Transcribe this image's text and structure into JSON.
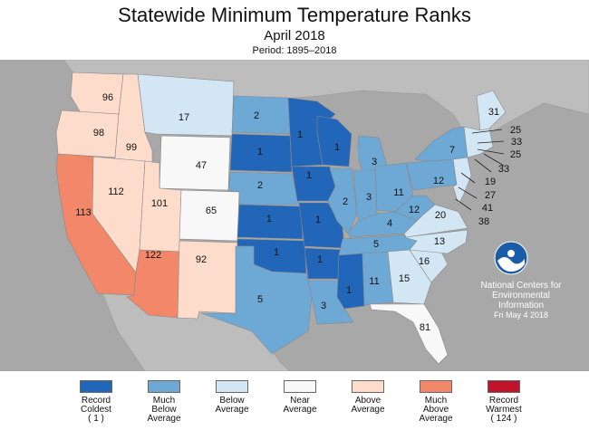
{
  "header": {
    "title": "Statewide Minimum Temperature Ranks",
    "subtitle": "April 2018",
    "period": "Period: 1895–2018"
  },
  "colors": {
    "record_coldest": "#2166b8",
    "much_below": "#6ea8d4",
    "below": "#d3e6f4",
    "near": "#f8f8f8",
    "above": "#fddccb",
    "much_above": "#f2876a",
    "record_warmest": "#c0142c",
    "background": "#a8a8a8",
    "land": "#bdbdbd"
  },
  "states": [
    {
      "name": "Washington",
      "rank": "96"
    },
    {
      "name": "Oregon",
      "rank": "98"
    },
    {
      "name": "Idaho",
      "rank": "99"
    },
    {
      "name": "Montana",
      "rank": "17"
    },
    {
      "name": "Wyoming",
      "rank": "47"
    },
    {
      "name": "California",
      "rank": "113"
    },
    {
      "name": "Nevada",
      "rank": "112"
    },
    {
      "name": "Utah",
      "rank": "101"
    },
    {
      "name": "Colorado",
      "rank": "65"
    },
    {
      "name": "Arizona",
      "rank": "122"
    },
    {
      "name": "New Mexico",
      "rank": "92"
    },
    {
      "name": "North Dakota",
      "rank": "2"
    },
    {
      "name": "South Dakota",
      "rank": "1"
    },
    {
      "name": "Nebraska",
      "rank": "2"
    },
    {
      "name": "Kansas",
      "rank": "1"
    },
    {
      "name": "Oklahoma",
      "rank": "1"
    },
    {
      "name": "Texas",
      "rank": "5"
    },
    {
      "name": "Minnesota",
      "rank": "1"
    },
    {
      "name": "Iowa",
      "rank": "1"
    },
    {
      "name": "Missouri",
      "rank": "1"
    },
    {
      "name": "Arkansas",
      "rank": "1"
    },
    {
      "name": "Louisiana",
      "rank": "3"
    },
    {
      "name": "Wisconsin",
      "rank": "1"
    },
    {
      "name": "Michigan",
      "rank": "3"
    },
    {
      "name": "Illinois",
      "rank": "2"
    },
    {
      "name": "Indiana",
      "rank": "3"
    },
    {
      "name": "Ohio",
      "rank": "11"
    },
    {
      "name": "Kentucky",
      "rank": "4"
    },
    {
      "name": "Tennessee",
      "rank": "5"
    },
    {
      "name": "Mississippi",
      "rank": "1"
    },
    {
      "name": "Alabama",
      "rank": "11"
    },
    {
      "name": "Georgia",
      "rank": "15"
    },
    {
      "name": "Florida",
      "rank": "81"
    },
    {
      "name": "South Carolina",
      "rank": "16"
    },
    {
      "name": "North Carolina",
      "rank": "13"
    },
    {
      "name": "Virginia",
      "rank": "20"
    },
    {
      "name": "West Virginia",
      "rank": "12"
    },
    {
      "name": "Pennsylvania",
      "rank": "12"
    },
    {
      "name": "New York",
      "rank": "7"
    },
    {
      "name": "Maine",
      "rank": "31"
    },
    {
      "name": "New Hampshire",
      "rank": "25"
    },
    {
      "name": "Vermont",
      "rank": "33"
    },
    {
      "name": "Massachusetts",
      "rank": "25"
    },
    {
      "name": "Rhode Island",
      "rank": "33"
    },
    {
      "name": "Connecticut",
      "rank": "19"
    },
    {
      "name": "New Jersey",
      "rank": "27"
    },
    {
      "name": "Delaware",
      "rank": "41"
    },
    {
      "name": "Maryland",
      "rank": "38"
    }
  ],
  "credit": {
    "line1": "National Centers for",
    "line2": "Environmental",
    "line3": "Information",
    "date": "Fri May  4 2018",
    "logo_text": "NOAA"
  },
  "legend": [
    {
      "line1": "Record",
      "line2": "Coldest",
      "line3": "( 1 )",
      "color": "#2166b8"
    },
    {
      "line1": "Much",
      "line2": "Below",
      "line3": "Average",
      "color": "#6ea8d4"
    },
    {
      "line1": "Below",
      "line2": "Average",
      "line3": "",
      "color": "#d3e6f4"
    },
    {
      "line1": "Near",
      "line2": "Average",
      "line3": "",
      "color": "#f8f8f8"
    },
    {
      "line1": "Above",
      "line2": "Average",
      "line3": "",
      "color": "#fddccb"
    },
    {
      "line1": "Much",
      "line2": "Above",
      "line3": "Average",
      "color": "#f2876a"
    },
    {
      "line1": "Record",
      "line2": "Warmest",
      "line3": "( 124 )",
      "color": "#c0142c"
    }
  ]
}
